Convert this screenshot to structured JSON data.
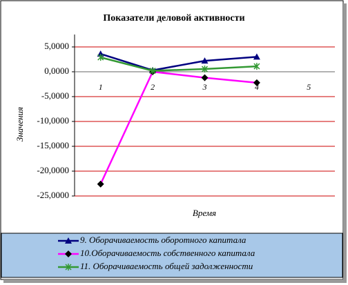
{
  "chart_data": {
    "type": "line",
    "title": "Показатели деловой активности",
    "y_label": "Значения",
    "x_label": "Время",
    "categories": [
      "1",
      "2",
      "3",
      "4",
      "5"
    ],
    "series": [
      {
        "name": "9. Оборачиваемость оборотного капитала",
        "color": "#000080",
        "marker": "triangle",
        "values": [
          3.6,
          0.3,
          2.2,
          3.0,
          null
        ]
      },
      {
        "name": "10.Оборачиваемость собственного капитала",
        "color": "#ff00ff",
        "marker": "diamond",
        "values": [
          -22.6,
          0.0,
          -1.2,
          -2.2,
          null
        ]
      },
      {
        "name": "11. Оборачиваемость общей задолженности",
        "color": "#339933",
        "marker": "asterisk",
        "values": [
          2.9,
          0.2,
          0.55,
          1.1,
          null
        ]
      }
    ],
    "ylim": [
      -25,
      7.5
    ],
    "yticks": [
      {
        "value": 5,
        "label": "5,0000"
      },
      {
        "value": 0,
        "label": "0,0000"
      },
      {
        "value": -5,
        "label": "-5,0000"
      },
      {
        "value": -10,
        "label": "-10,0000"
      },
      {
        "value": -15,
        "label": "-15,0000"
      },
      {
        "value": -20,
        "label": "-20,0000"
      },
      {
        "value": -25,
        "label": "-25,0000"
      }
    ],
    "grid": true,
    "grid_color": "#cc0000",
    "legend": "bottom"
  }
}
